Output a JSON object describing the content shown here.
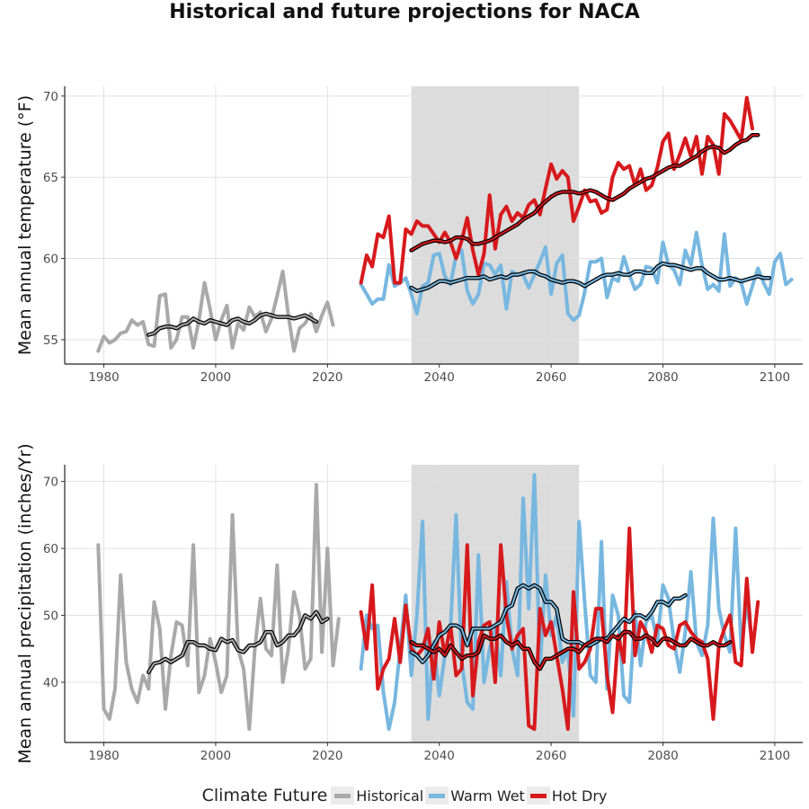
{
  "title": "Historical and future projections for NACA",
  "legend": {
    "title": "Climate Future",
    "items": [
      {
        "label": "Historical",
        "color": "#a9a9a9"
      },
      {
        "label": "Warm Wet",
        "color": "#77b7e0"
      },
      {
        "label": "Hot Dry",
        "color": "#d7191c"
      }
    ]
  },
  "chart_data": [
    {
      "type": "line",
      "ylabel": "Mean annual temperature (°F)",
      "xlim": [
        1973,
        2105
      ],
      "ylim": [
        53.5,
        70.6
      ],
      "xticks": [
        1980,
        2000,
        2020,
        2040,
        2060,
        2080,
        2100
      ],
      "yticks": [
        55,
        60,
        65,
        70
      ],
      "shaded_period": [
        2035,
        2065
      ],
      "series": [
        {
          "name": "Historical",
          "color": "#a9a9a9",
          "x_start": 1979,
          "values": [
            54.3,
            55.2,
            54.8,
            55.0,
            55.4,
            55.5,
            56.2,
            55.9,
            56.1,
            54.7,
            54.6,
            57.7,
            57.8,
            54.5,
            55.0,
            56.4,
            56.4,
            54.5,
            56.2,
            58.5,
            56.9,
            55.0,
            56.2,
            57.1,
            54.5,
            56.0,
            55.6,
            57.0,
            56.4,
            56.7,
            55.5,
            56.3,
            57.7,
            59.2,
            56.5,
            54.3,
            55.7,
            56.0,
            56.6,
            55.5,
            56.5,
            57.3,
            55.9
          ]
        },
        {
          "name": "Warm Wet",
          "color": "#77b7e0",
          "x_start": 2026,
          "values": [
            58.4,
            57.8,
            57.2,
            57.5,
            57.5,
            59.6,
            58.3,
            58.5,
            58.8,
            57.8,
            56.6,
            58.3,
            58.5,
            60.2,
            60.3,
            58.9,
            58.4,
            60.2,
            60.5,
            58.0,
            57.2,
            57.8,
            59.7,
            59.6,
            59.0,
            59.6,
            56.9,
            59.2,
            59.0,
            59.0,
            58.2,
            59.0,
            59.8,
            60.7,
            57.8,
            59.7,
            60.2,
            56.6,
            56.2,
            56.5,
            57.9,
            59.8,
            59.8,
            60.0,
            57.6,
            58.8,
            58.6,
            60.1,
            59.0,
            58.1,
            58.4,
            59.5,
            59.4,
            58.5,
            61.0,
            59.6,
            59.3,
            58.4,
            60.5,
            59.6,
            61.6,
            59.6,
            58.1,
            58.4,
            58.0,
            61.5,
            58.3,
            58.8,
            58.5,
            57.2,
            58.3,
            59.4,
            58.5,
            57.8,
            59.8,
            60.3,
            58.4,
            58.7
          ]
        },
        {
          "name": "Hot Dry",
          "color": "#d7191c",
          "x_start": 2026,
          "values": [
            58.5,
            60.2,
            59.5,
            61.5,
            61.3,
            62.6,
            58.5,
            58.5,
            61.8,
            61.5,
            62.3,
            62.0,
            62.0,
            61.5,
            61.0,
            61.6,
            61.0,
            60.0,
            61.1,
            62.5,
            60.5,
            59.0,
            60.3,
            63.9,
            60.6,
            62.7,
            63.2,
            62.3,
            62.8,
            62.5,
            63.3,
            63.6,
            62.7,
            64.3,
            65.8,
            64.9,
            65.4,
            65.0,
            62.3,
            63.2,
            64.2,
            63.5,
            63.6,
            62.8,
            63.0,
            65.0,
            65.9,
            65.5,
            65.7,
            64.5,
            65.5,
            64.2,
            64.5,
            65.6,
            67.2,
            67.7,
            65.5,
            66.4,
            67.4,
            66.3,
            67.5,
            65.2,
            67.5,
            67.0,
            65.2,
            68.9,
            68.5,
            67.9,
            67.3,
            69.9,
            68.0
          ]
        },
        {
          "name": "Historical (smoothed)",
          "color": "#a9a9a9",
          "x_start": 1988,
          "values": [
            55.3,
            55.4,
            55.7,
            55.8,
            55.8,
            55.7,
            55.9,
            56.0,
            56.3,
            56.1,
            56.0,
            56.2,
            56.1,
            56.0,
            55.9,
            56.2,
            56.3,
            56.1,
            56.0,
            56.2,
            56.5,
            56.6,
            56.5,
            56.4,
            56.4,
            56.4,
            56.3,
            56.4,
            56.5,
            56.3,
            56.1
          ]
        },
        {
          "name": "Warm Wet (smoothed)",
          "color": "#77b7e0",
          "x_start": 2035,
          "values": [
            58.2,
            58.0,
            58.1,
            58.2,
            58.4,
            58.6,
            58.6,
            58.5,
            58.6,
            58.7,
            58.8,
            58.8,
            58.8,
            58.9,
            58.7,
            58.8,
            58.9,
            58.8,
            59.0,
            59.0,
            59.1,
            59.2,
            59.2,
            59.0,
            58.9,
            58.7,
            58.6,
            58.5,
            58.6,
            58.6,
            58.5,
            58.3,
            58.5,
            58.7,
            58.9,
            59.0,
            59.0,
            59.1,
            59.0,
            59.0,
            59.2,
            59.2,
            59.1,
            59.1,
            59.5,
            59.7,
            59.6,
            59.6,
            59.5,
            59.4,
            59.3,
            59.4,
            59.4,
            59.1,
            58.9,
            58.7,
            58.7,
            58.8,
            58.7,
            58.6,
            58.7,
            58.8,
            58.9,
            58.8,
            58.8
          ]
        },
        {
          "name": "Hot Dry (smoothed)",
          "color": "#d7191c",
          "x_start": 2035,
          "values": [
            60.5,
            60.7,
            60.9,
            61.0,
            61.1,
            61.1,
            61.0,
            61.1,
            61.3,
            61.3,
            61.2,
            60.9,
            60.9,
            61.0,
            61.1,
            61.3,
            61.5,
            61.7,
            61.9,
            62.1,
            62.4,
            62.6,
            62.8,
            63.2,
            63.5,
            63.8,
            64.0,
            64.1,
            64.1,
            64.1,
            64.0,
            64.1,
            64.2,
            64.1,
            63.9,
            63.7,
            63.6,
            63.8,
            64.0,
            64.3,
            64.5,
            64.7,
            64.9,
            65.0,
            65.2,
            65.4,
            65.6,
            65.7,
            65.7,
            65.9,
            66.1,
            66.3,
            66.6,
            66.8,
            66.9,
            66.8,
            66.5,
            66.7,
            67.0,
            67.2,
            67.3,
            67.6,
            67.6
          ]
        }
      ]
    },
    {
      "type": "line",
      "ylabel": "Mean annual precipitation (inches/Yr)",
      "xlim": [
        1973,
        2105
      ],
      "ylim": [
        31,
        72.5
      ],
      "xticks": [
        1980,
        2000,
        2020,
        2040,
        2060,
        2080,
        2100
      ],
      "yticks": [
        40,
        50,
        60,
        70
      ],
      "shaded_period": [
        2035,
        2065
      ],
      "series": [
        {
          "name": "Historical",
          "color": "#a9a9a9",
          "x_start": 1979,
          "values": [
            60.5,
            36.0,
            34.5,
            39.0,
            56.0,
            43.0,
            39.0,
            37.0,
            41.0,
            39.0,
            52.0,
            48.0,
            36.0,
            44.0,
            49.0,
            48.5,
            42.5,
            60.5,
            38.5,
            41.0,
            46.5,
            43.0,
            38.5,
            41.0,
            65.0,
            45.0,
            42.0,
            33.0,
            45.0,
            52.5,
            45.0,
            44.0,
            57.5,
            40.0,
            45.0,
            53.5,
            50.0,
            42.0,
            43.5,
            69.5,
            44.5,
            60.0,
            42.5,
            49.5
          ]
        },
        {
          "name": "Warm Wet",
          "color": "#77b7e0",
          "x_start": 2026,
          "values": [
            42.0,
            50.0,
            48.0,
            48.5,
            38.5,
            33.0,
            37.0,
            45.0,
            53.0,
            41.0,
            50.0,
            64.0,
            34.5,
            46.0,
            38.0,
            44.0,
            48.0,
            65.0,
            43.0,
            37.0,
            36.0,
            59.0,
            40.0,
            45.0,
            48.0,
            41.0,
            55.0,
            45.0,
            41.0,
            67.5,
            51.0,
            71.0,
            42.0,
            56.0,
            47.0,
            50.0,
            43.0,
            45.0,
            35.0,
            64.0,
            52.0,
            41.0,
            40.0,
            61.0,
            39.0,
            53.0,
            50.0,
            38.0,
            37.0,
            50.5,
            42.5,
            49.0,
            50.0,
            46.0,
            54.5,
            52.5,
            46.0,
            41.5,
            47.5,
            56.5,
            46.0,
            44.0,
            48.5,
            64.5,
            51.0,
            47.0,
            44.5,
            63.0,
            45.0,
            52.0,
            45.5
          ]
        },
        {
          "name": "Hot Dry",
          "color": "#d7191c",
          "x_start": 2026,
          "values": [
            50.5,
            45.0,
            54.5,
            39.0,
            42.0,
            43.5,
            49.5,
            43.0,
            51.5,
            45.0,
            44.0,
            45.0,
            48.0,
            40.5,
            49.0,
            44.0,
            48.5,
            41.0,
            42.0,
            60.5,
            38.0,
            46.0,
            48.5,
            49.0,
            40.0,
            60.5,
            50.0,
            45.0,
            47.0,
            48.0,
            33.5,
            33.0,
            51.0,
            47.0,
            49.0,
            44.0,
            39.0,
            33.0,
            53.5,
            42.0,
            43.0,
            45.0,
            51.0,
            51.0,
            41.0,
            35.5,
            47.0,
            43.0,
            63.0,
            44.0,
            49.0,
            47.5,
            44.5,
            48.5,
            48.0,
            45.5,
            45.0,
            48.5,
            49.0,
            47.5,
            46.5,
            46.0,
            43.5,
            34.5,
            45.5,
            48.0,
            50.0,
            43.0,
            42.5,
            55.5,
            44.5,
            52.0
          ]
        },
        {
          "name": "Historical (smoothed)",
          "color": "#a9a9a9",
          "x_start": 1988,
          "values": [
            41.5,
            42.8,
            43.0,
            43.5,
            43.0,
            43.5,
            44.0,
            46.0,
            46.0,
            45.5,
            45.5,
            45.0,
            44.8,
            46.5,
            46.0,
            46.3,
            44.8,
            44.5,
            45.5,
            45.5,
            46.0,
            47.5,
            47.5,
            45.5,
            46.0,
            47.0,
            47.0,
            48.0,
            50.0,
            49.5,
            50.5,
            49.0,
            49.5
          ]
        },
        {
          "name": "Warm Wet (smoothed)",
          "color": "#77b7e0",
          "x_start": 2035,
          "values": [
            44.5,
            44.0,
            43.0,
            44.0,
            45.5,
            47.0,
            47.5,
            48.5,
            48.5,
            48.0,
            45.5,
            48.0,
            48.0,
            48.0,
            48.0,
            48.5,
            49.0,
            51.0,
            51.5,
            54.0,
            54.5,
            54.0,
            54.5,
            54.0,
            52.0,
            52.0,
            51.0,
            46.5,
            46.0,
            46.0,
            46.0,
            45.5,
            45.5,
            46.0,
            46.5,
            46.5,
            47.5,
            48.5,
            49.5,
            49.0,
            50.0,
            50.0,
            49.5,
            50.5,
            52.0,
            52.0,
            51.5,
            52.5,
            52.5,
            53.0
          ]
        },
        {
          "name": "Hot Dry (smoothed)",
          "color": "#d7191c",
          "x_start": 2035,
          "values": [
            46.0,
            45.5,
            45.5,
            45.0,
            44.5,
            45.0,
            44.0,
            45.5,
            44.5,
            43.5,
            44.0,
            44.0,
            44.5,
            47.0,
            46.5,
            46.5,
            47.0,
            46.0,
            45.5,
            46.0,
            45.0,
            45.0,
            43.0,
            42.0,
            43.5,
            43.5,
            44.0,
            44.5,
            45.0,
            45.0,
            44.5,
            45.5,
            46.0,
            46.5,
            46.5,
            46.0,
            47.0,
            46.5,
            47.5,
            47.5,
            46.5,
            46.5,
            47.0,
            46.5,
            45.5,
            46.5,
            46.5,
            46.0,
            45.5,
            45.5,
            46.5,
            46.0,
            45.5,
            45.5,
            46.0,
            45.5,
            45.5,
            46.0
          ]
        }
      ]
    }
  ]
}
